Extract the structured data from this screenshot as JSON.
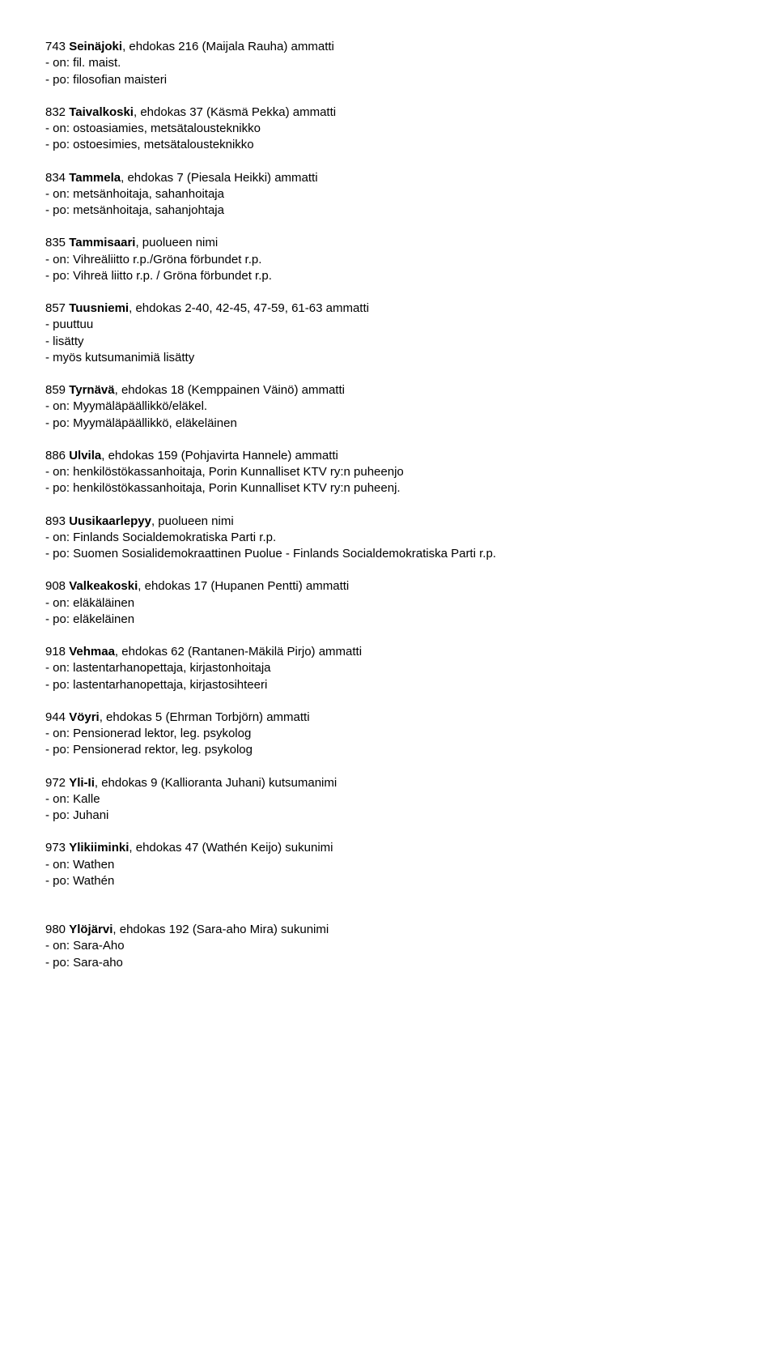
{
  "entries": [
    {
      "num": "743 ",
      "place": "Seinäjoki",
      "rest": ", ehdokas 216 (Maijala Rauha) ammatti",
      "lines": [
        "- on: fil. maist.",
        "- po: filosofian maisteri"
      ]
    },
    {
      "num": "832 ",
      "place": "Taivalkoski",
      "rest": ", ehdokas 37 (Käsmä Pekka) ammatti",
      "lines": [
        "- on: ostoasiamies, metsätalousteknikko",
        "- po: ostoesimies, metsätalousteknikko"
      ]
    },
    {
      "num": "834 ",
      "place": "Tammela",
      "rest": ", ehdokas 7 (Piesala Heikki) ammatti",
      "lines": [
        "- on: metsänhoitaja, sahanhoitaja",
        "- po: metsänhoitaja, sahanjohtaja"
      ]
    },
    {
      "num": "835 ",
      "place": "Tammisaari",
      "rest": ", puolueen nimi",
      "lines": [
        "- on: Vihreäliitto r.p./Gröna förbundet r.p.",
        "- po: Vihreä liitto r.p. / Gröna förbundet r.p."
      ]
    },
    {
      "num": "857 ",
      "place": "Tuusniemi",
      "rest": ", ehdokas 2-40, 42-45, 47-59, 61-63 ammatti",
      "lines": [
        "- puuttuu",
        "- lisätty",
        "- myös kutsumanimiä lisätty"
      ]
    },
    {
      "num": "859 ",
      "place": "Tyrnävä",
      "rest": ", ehdokas 18 (Kemppainen Väinö) ammatti",
      "lines": [
        "- on: Myymäläpäällikkö/eläkel.",
        "- po: Myymäläpäällikkö, eläkeläinen"
      ]
    },
    {
      "num": "886 ",
      "place": "Ulvila",
      "rest": ", ehdokas 159 (Pohjavirta Hannele) ammatti",
      "lines": [
        "- on: henkilöstökassanhoitaja, Porin Kunnalliset KTV ry:n puheenjo",
        "- po: henkilöstökassanhoitaja, Porin Kunnalliset KTV ry:n puheenj."
      ]
    },
    {
      "num": "893 ",
      "place": "Uusikaarlepyy",
      "rest": ", puolueen nimi",
      "lines": [
        "- on: Finlands Socialdemokratiska Parti r.p.",
        "- po: Suomen Sosialidemokraattinen Puolue - Finlands Socialdemokratiska Parti r.p."
      ]
    },
    {
      "num": "908 ",
      "place": "Valkeakoski",
      "rest": ", ehdokas 17 (Hupanen Pentti) ammatti",
      "lines": [
        "- on: eläkäläinen",
        "- po: eläkeläinen"
      ]
    },
    {
      "num": "918 ",
      "place": "Vehmaa",
      "rest": ", ehdokas 62 (Rantanen-Mäkilä Pirjo) ammatti",
      "lines": [
        "- on: lastentarhanopettaja, kirjastonhoitaja",
        "- po: lastentarhanopettaja, kirjastosihteeri"
      ]
    },
    {
      "num": "944 ",
      "place": "Vöyri",
      "rest": ", ehdokas 5 (Ehrman Torbjörn) ammatti",
      "lines": [
        "- on: Pensionerad lektor, leg. psykolog",
        "- po: Pensionerad rektor, leg. psykolog"
      ]
    },
    {
      "num": "972 ",
      "place": "Yli-Ii",
      "rest": ", ehdokas 9 (Kallioranta Juhani) kutsumanimi",
      "lines": [
        "- on: Kalle",
        "- po: Juhani"
      ]
    },
    {
      "num": "973 ",
      "place": "Ylikiiminki",
      "rest": ", ehdokas 47 (Wathén Keijo) sukunimi",
      "lines": [
        "- on: Wathen",
        "- po: Wathén"
      ],
      "gapAfter": true
    },
    {
      "num": "980 ",
      "place": "Ylöjärvi",
      "rest": ", ehdokas 192 (Sara-aho Mira) sukunimi",
      "lines": [
        "- on: Sara-Aho",
        "- po: Sara-aho"
      ]
    }
  ]
}
